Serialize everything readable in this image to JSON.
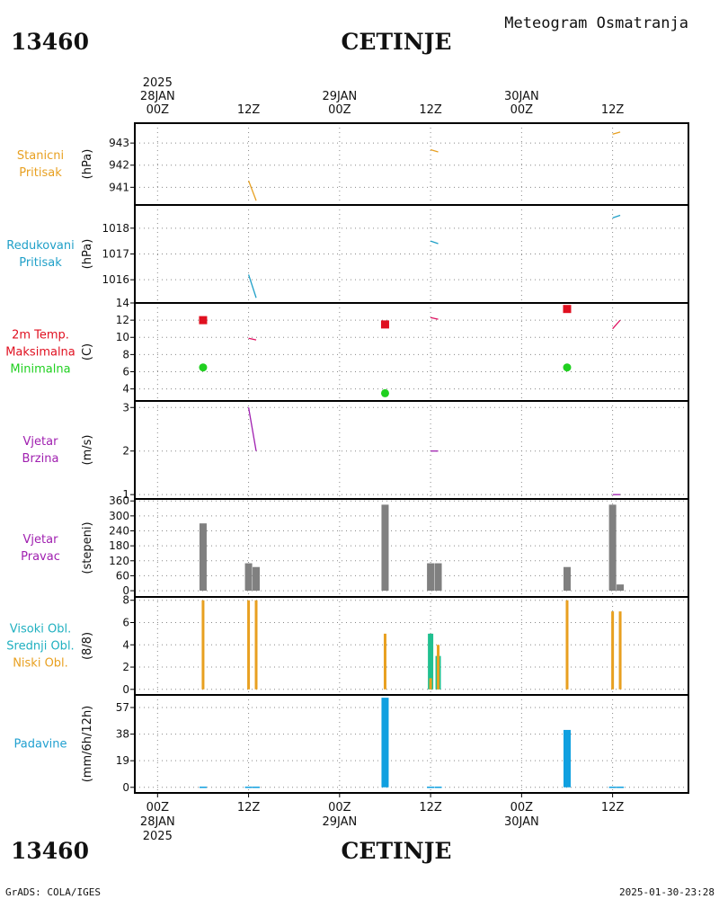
{
  "header": {
    "station_id": "13460",
    "station_name": "CETINJE",
    "subtitle": "Meteogram Osmatranja"
  },
  "footer": {
    "station_id": "13460",
    "station_name": "CETINJE",
    "credit": "GrADS: COLA/IGES",
    "timestamp": "2025-01-30-23:28"
  },
  "time_axis": {
    "top_labels": [
      {
        "t": 0,
        "lines": [
          "2025",
          "28JAN",
          "00Z"
        ]
      },
      {
        "t": 12,
        "lines": [
          "12Z"
        ]
      },
      {
        "t": 24,
        "lines": [
          "29JAN",
          "00Z"
        ]
      },
      {
        "t": 36,
        "lines": [
          "12Z"
        ]
      },
      {
        "t": 48,
        "lines": [
          "30JAN",
          "00Z"
        ]
      },
      {
        "t": 60,
        "lines": [
          "12Z"
        ]
      }
    ],
    "bottom_labels": [
      {
        "t": 0,
        "lines": [
          "00Z",
          "28JAN",
          "2025"
        ]
      },
      {
        "t": 12,
        "lines": [
          "12Z"
        ]
      },
      {
        "t": 24,
        "lines": [
          "00Z",
          "29JAN"
        ]
      },
      {
        "t": 36,
        "lines": [
          "12Z"
        ]
      },
      {
        "t": 48,
        "lines": [
          "00Z",
          "30JAN"
        ]
      },
      {
        "t": 60,
        "lines": [
          "12Z"
        ]
      }
    ],
    "range_hours": [
      -3,
      70
    ],
    "grid_hours": [
      0,
      12,
      24,
      36,
      48,
      60
    ]
  },
  "chart_data": [
    {
      "id": "station_pressure",
      "type": "line",
      "title_lines": [
        {
          "text": "Stanicni",
          "color": "#e8a020"
        },
        {
          "text": "Pritisak",
          "color": "#e8a020"
        }
      ],
      "ylabel": "(hPa)",
      "ylim": [
        940.2,
        943.9
      ],
      "yticks": [
        941,
        942,
        943
      ],
      "segments": [
        {
          "color": "#e8a020",
          "points": [
            [
              12,
              941.3
            ],
            [
              13,
              940.4
            ]
          ]
        },
        {
          "color": "#e8a020",
          "points": [
            [
              36,
              942.7
            ],
            [
              37,
              942.6
            ]
          ]
        },
        {
          "color": "#e8a020",
          "points": [
            [
              60,
              943.4
            ],
            [
              61,
              943.5
            ]
          ]
        }
      ]
    },
    {
      "id": "reduced_pressure",
      "type": "line",
      "title_lines": [
        {
          "text": "Redukovani",
          "color": "#20a0c8"
        },
        {
          "text": "Pritisak",
          "color": "#20a0c8"
        }
      ],
      "ylabel": "(hPa)",
      "ylim": [
        1015.1,
        1018.9
      ],
      "yticks": [
        1016,
        1017,
        1018
      ],
      "segments": [
        {
          "color": "#20a0c8",
          "points": [
            [
              12,
              1016.2
            ],
            [
              13,
              1015.3
            ]
          ]
        },
        {
          "color": "#20a0c8",
          "points": [
            [
              36,
              1017.5
            ],
            [
              37,
              1017.4
            ]
          ]
        },
        {
          "color": "#20a0c8",
          "points": [
            [
              60,
              1018.4
            ],
            [
              61,
              1018.5
            ]
          ]
        }
      ]
    },
    {
      "id": "temperature",
      "type": "scatter",
      "title_lines": [
        {
          "text": "2m Temp.",
          "color": "#e01020"
        },
        {
          "text": "Maksimalna",
          "color": "#e01020"
        },
        {
          "text": "Minimalna",
          "color": "#20d020"
        }
      ],
      "ylabel": "(C)",
      "ylim": [
        2.6,
        14
      ],
      "yticks": [
        4,
        6,
        8,
        10,
        12,
        14
      ],
      "max_points": [
        {
          "t": 6,
          "v": 12
        },
        {
          "t": 30,
          "v": 11.5
        },
        {
          "t": 54,
          "v": 13.3
        }
      ],
      "min_points": [
        {
          "t": 6,
          "v": 6.5
        },
        {
          "t": 30,
          "v": 3.5
        },
        {
          "t": 54,
          "v": 6.5
        }
      ],
      "max_color": "#e01020",
      "min_color": "#20d020",
      "segments": [
        {
          "color": "#e01060",
          "points": [
            [
              12,
              9.9
            ],
            [
              13,
              9.7
            ]
          ]
        },
        {
          "color": "#e01060",
          "points": [
            [
              36,
              12.3
            ],
            [
              37,
              12.1
            ]
          ]
        },
        {
          "color": "#e01060",
          "points": [
            [
              60,
              11.0
            ],
            [
              61,
              12.0
            ]
          ]
        }
      ]
    },
    {
      "id": "wind_speed",
      "type": "line",
      "title_lines": [
        {
          "text": "Vjetar",
          "color": "#a020b0"
        },
        {
          "text": "Brzina",
          "color": "#a020b0"
        }
      ],
      "ylabel": "(m/s)",
      "ylim": [
        0.9,
        3.15
      ],
      "yticks": [
        1,
        2,
        3
      ],
      "segments": [
        {
          "color": "#a020b0",
          "points": [
            [
              12,
              3.0
            ],
            [
              13,
              2.0
            ]
          ]
        },
        {
          "color": "#a020b0",
          "points": [
            [
              36,
              2.0
            ],
            [
              37,
              2.0
            ]
          ]
        },
        {
          "color": "#a020b0",
          "points": [
            [
              60,
              1.0
            ],
            [
              61,
              1.0
            ]
          ]
        }
      ]
    },
    {
      "id": "wind_direction",
      "type": "bar",
      "title_lines": [
        {
          "text": "Vjetar",
          "color": "#a020b0"
        },
        {
          "text": "Pravac",
          "color": "#a020b0"
        }
      ],
      "ylabel": "(stepeni)",
      "ylim": [
        -25,
        368
      ],
      "yticks": [
        0,
        60,
        120,
        180,
        240,
        300,
        360
      ],
      "bar_color": "#808080",
      "bars": [
        {
          "t": 6,
          "v": 270
        },
        {
          "t": 12,
          "v": 110
        },
        {
          "t": 13,
          "v": 95
        },
        {
          "t": 30,
          "v": 345
        },
        {
          "t": 36,
          "v": 110
        },
        {
          "t": 37,
          "v": 110
        },
        {
          "t": 54,
          "v": 95
        },
        {
          "t": 60,
          "v": 345
        },
        {
          "t": 61,
          "v": 25
        }
      ]
    },
    {
      "id": "cloud_cover",
      "type": "bar",
      "title_lines": [
        {
          "text": "Visoki Obl.",
          "color": "#20b0c0"
        },
        {
          "text": "Srednji Obl.",
          "color": "#20b0c0"
        },
        {
          "text": "Niski Obl.",
          "color": "#e8a020"
        }
      ],
      "ylabel": "(8/8)",
      "ylim": [
        -0.5,
        8.3
      ],
      "yticks": [
        0,
        2,
        4,
        6,
        8
      ],
      "series": [
        {
          "name": "Srednji Obl.",
          "color": "#20c090",
          "bars": [
            {
              "t": 36,
              "v": 5
            },
            {
              "t": 37,
              "v": 3
            }
          ]
        },
        {
          "name": "Niski Obl.",
          "color": "#e8a020",
          "bars": [
            {
              "t": 6,
              "v": 8
            },
            {
              "t": 12,
              "v": 8
            },
            {
              "t": 13,
              "v": 8
            },
            {
              "t": 30,
              "v": 5
            },
            {
              "t": 36,
              "v": 1
            },
            {
              "t": 37,
              "v": 4
            },
            {
              "t": 54,
              "v": 8
            },
            {
              "t": 60,
              "v": 7
            },
            {
              "t": 61,
              "v": 7
            }
          ]
        }
      ]
    },
    {
      "id": "precipitation",
      "type": "bar",
      "title_lines": [
        {
          "text": "Padavine",
          "color": "#20a0d0"
        }
      ],
      "ylabel": "(mm/6h/12h)",
      "ylim": [
        -4,
        66
      ],
      "yticks": [
        0,
        19,
        38,
        57
      ],
      "bar_color": "#10a0e0",
      "bars": [
        {
          "t": 6,
          "v": 0.5
        },
        {
          "t": 12,
          "v": 0.5
        },
        {
          "t": 13,
          "v": 0.5
        },
        {
          "t": 30,
          "v": 64
        },
        {
          "t": 36,
          "v": 0.5
        },
        {
          "t": 37,
          "v": 0.5
        },
        {
          "t": 54,
          "v": 41
        },
        {
          "t": 60,
          "v": 0.5
        },
        {
          "t": 61,
          "v": 0.5
        }
      ]
    }
  ]
}
